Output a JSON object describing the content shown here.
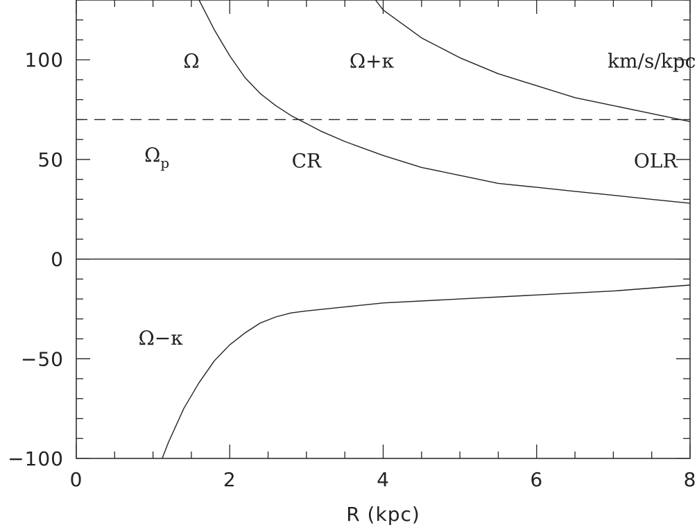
{
  "chart_data": {
    "type": "line",
    "xlabel": "R (kpc)",
    "ylabel": "",
    "xlim": [
      0,
      8
    ],
    "ylim": [
      -100,
      130
    ],
    "xticks": [
      0,
      2,
      4,
      6,
      8
    ],
    "xtick_labels": [
      "0",
      "2",
      "4",
      "6",
      "8"
    ],
    "yticks": [
      -100,
      -50,
      0,
      50,
      100
    ],
    "ytick_labels": [
      "−100",
      "−50",
      "0",
      "50",
      "100"
    ],
    "grid": false,
    "series": [
      {
        "key": "omega",
        "style": "solid",
        "x": [
          1.6,
          1.8,
          2.0,
          2.2,
          2.4,
          2.6,
          2.8,
          3.0,
          3.2,
          3.5,
          4.0,
          4.5,
          5.0,
          5.5,
          6.0,
          6.5,
          7.0,
          7.5,
          8.0
        ],
        "y": [
          130,
          115,
          102,
          91,
          83,
          77,
          72,
          68,
          64,
          59,
          52,
          46,
          42,
          38,
          36,
          34,
          32,
          30,
          28
        ]
      },
      {
        "key": "omega-plus-kappa",
        "style": "solid",
        "x": [
          3.9,
          4.0,
          4.5,
          5.0,
          5.5,
          6.0,
          6.5,
          7.0,
          7.5,
          8.0
        ],
        "y": [
          130,
          125,
          111,
          101,
          93,
          87,
          81,
          77,
          73,
          69
        ]
      },
      {
        "key": "omega-minus-kappa",
        "style": "solid",
        "x": [
          1.12,
          1.2,
          1.4,
          1.6,
          1.8,
          2.0,
          2.2,
          2.4,
          2.6,
          2.8,
          3.0,
          3.5,
          4.0,
          5.0,
          6.0,
          7.0,
          8.0
        ],
        "y": [
          -100,
          -92,
          -75,
          -62,
          -51,
          -43,
          -37,
          -32,
          -29,
          -27,
          -26,
          -24,
          -22,
          -20,
          -18,
          -16,
          -13
        ]
      },
      {
        "key": "omega-p",
        "style": "dashed",
        "x": [
          0,
          8
        ],
        "y": [
          70,
          70
        ]
      },
      {
        "key": "zero-line",
        "style": "solid",
        "x": [
          0,
          8
        ],
        "y": [
          0,
          0
        ]
      }
    ],
    "annotations": [
      {
        "key": "omega",
        "text": "Ω",
        "x": 1.5,
        "y": 96
      },
      {
        "key": "omega-plus-kappa",
        "text": "Ω+κ",
        "x": 3.85,
        "y": 96
      },
      {
        "key": "units",
        "text": "km/s/kpc",
        "x": 7.5,
        "y": 96
      },
      {
        "key": "omega-p",
        "text": "Ω",
        "sub": "p",
        "x": 1.05,
        "y": 49
      },
      {
        "key": "cr",
        "text": "CR",
        "x": 3.0,
        "y": 46
      },
      {
        "key": "olr",
        "text": "OLR",
        "x": 7.55,
        "y": 46
      },
      {
        "key": "omega-minus-kappa",
        "text": "Ω−κ",
        "x": 1.1,
        "y": -43
      }
    ]
  }
}
